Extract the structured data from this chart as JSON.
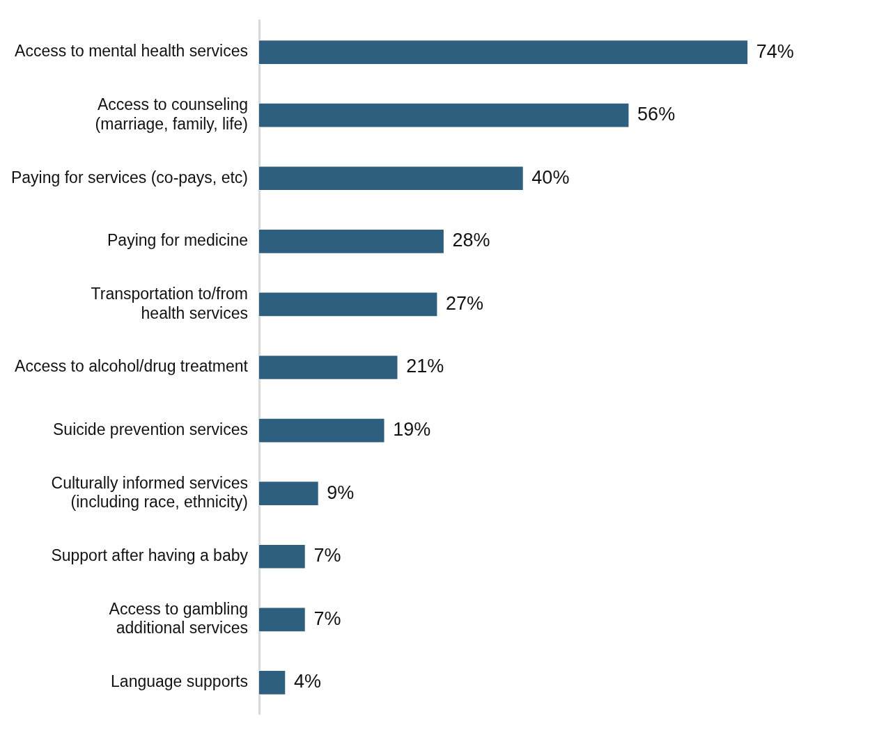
{
  "chart_data": {
    "type": "bar",
    "orientation": "horizontal",
    "data_labels": true,
    "legend": false,
    "categories": [
      "Access to mental health services",
      "Access to counseling\n(marriage, family, life)",
      "Paying for services (co-pays, etc)",
      "Paying for medicine",
      "Transportation to/from\nhealth services",
      "Access to alcohol/drug treatment",
      "Suicide prevention services",
      "Culturally informed services\n(including race, ethnicity)",
      "Support after having a baby",
      "Access to gambling\nadditional services",
      "Language supports"
    ],
    "values": [
      74,
      56,
      40,
      28,
      27,
      21,
      19,
      9,
      7,
      7,
      4
    ],
    "value_labels": [
      "74%",
      "56%",
      "40%",
      "28%",
      "27%",
      "21%",
      "19%",
      "9%",
      "7%",
      "7%",
      "4%"
    ],
    "color": "#2e5f7e"
  }
}
